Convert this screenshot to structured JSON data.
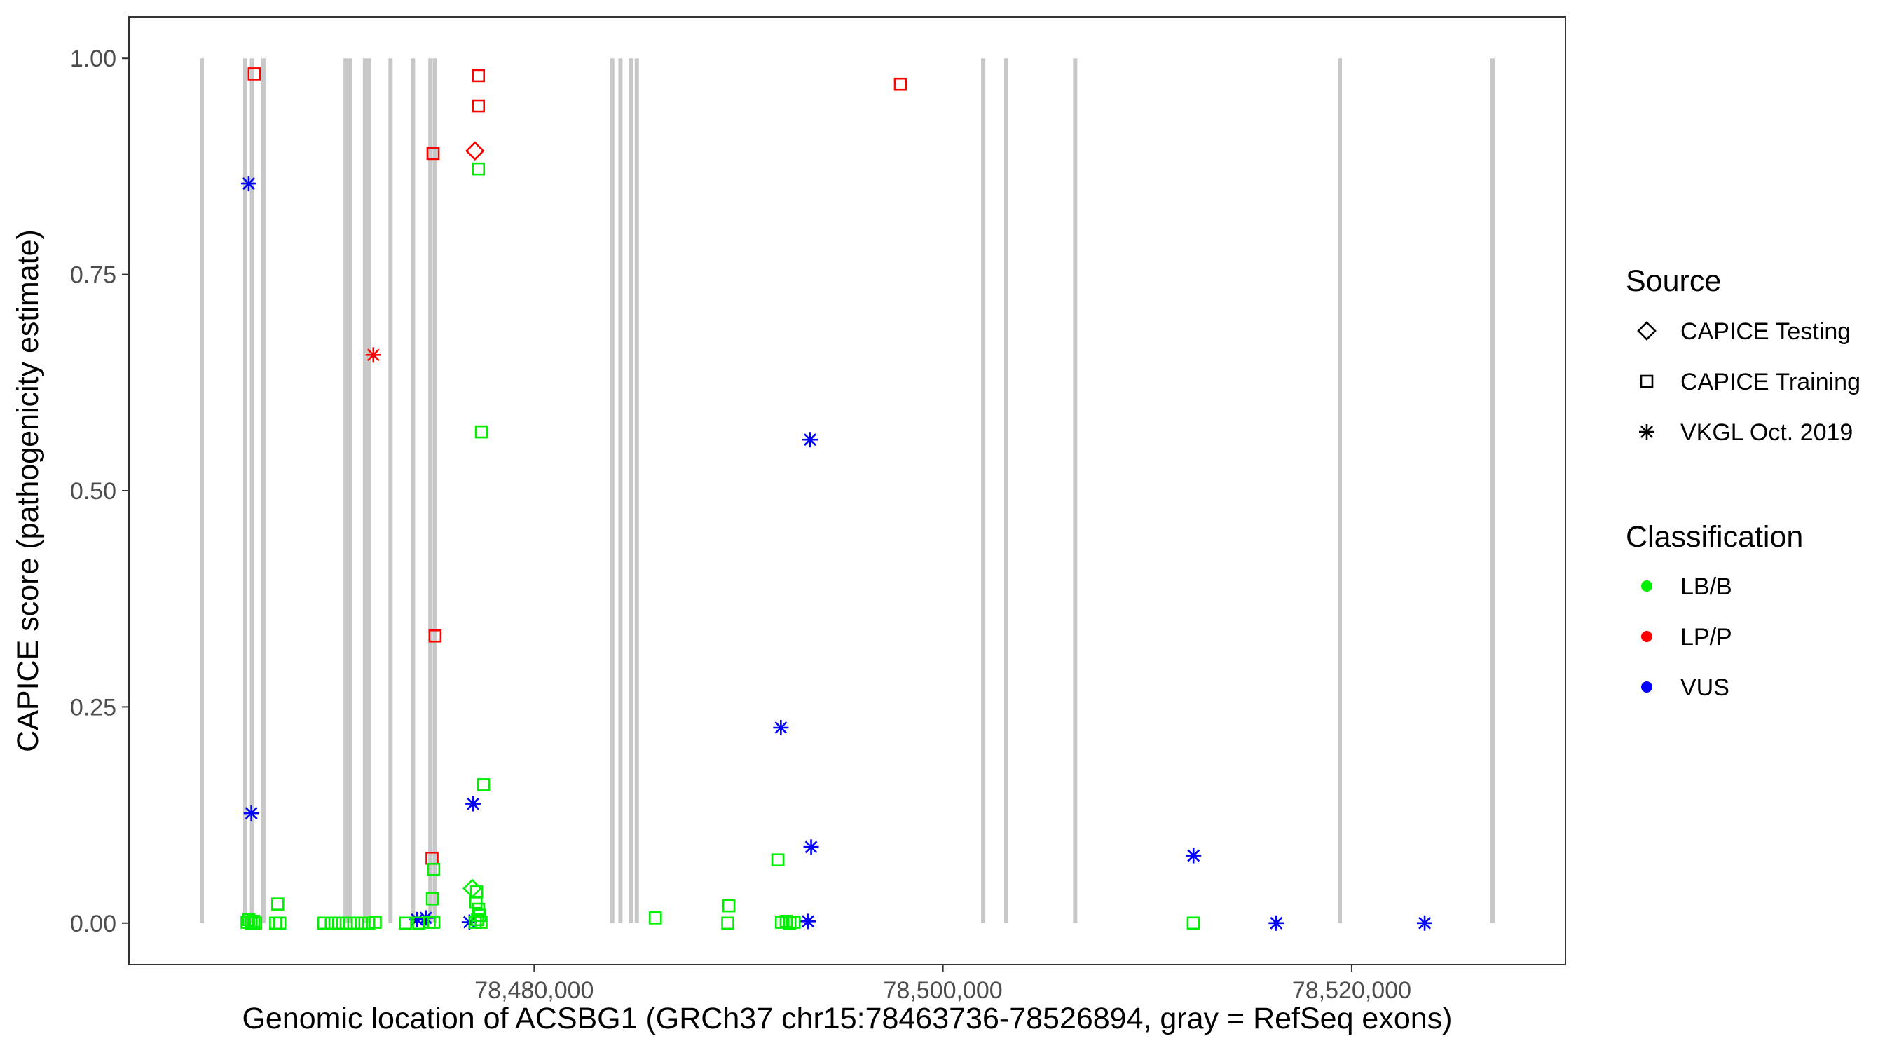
{
  "chart_data": {
    "type": "scatter",
    "title": "",
    "xlabel": "Genomic location of ACSBG1 (GRCh37 chr15:78463736-78526894, gray = RefSeq exons)",
    "ylabel": "CAPICE score (pathogenicity estimate)",
    "xlim": [
      78460170,
      78530460
    ],
    "ylim": [
      -0.048,
      1.048
    ],
    "x_ticks": [
      78480000,
      78500000,
      78520000
    ],
    "x_tick_labels": [
      "78,480,000",
      "78,500,000",
      "78,520,000"
    ],
    "y_ticks": [
      0,
      0.25,
      0.5,
      0.75,
      1
    ],
    "y_tick_labels": [
      "0.00",
      "0.25",
      "0.50",
      "0.75",
      "1.00"
    ],
    "grid": false,
    "legend_placement": "right",
    "exons": [
      78463736,
      78465860,
      78466190,
      78466750,
      78470770,
      78470990,
      78471720,
      78471920,
      78472970,
      78474070,
      78474920,
      78475140,
      78483820,
      78484220,
      78484720,
      78485020,
      78501970,
      78503100,
      78506470,
      78519420,
      78526894
    ],
    "legend": {
      "source_title": "Source",
      "source_items": [
        {
          "label": "CAPICE Testing",
          "shape": "diamond"
        },
        {
          "label": "CAPICE Training",
          "shape": "square"
        },
        {
          "label": "VKGL Oct. 2019",
          "shape": "asterisk"
        }
      ],
      "classification_title": "Classification",
      "classification_items": [
        {
          "label": "LB/B",
          "color": "#00ee00"
        },
        {
          "label": "LP/P",
          "color": "#ff0000"
        },
        {
          "label": "VUS",
          "color": "#0000ff"
        }
      ]
    },
    "series": [
      {
        "name": "CAPICE Training",
        "classification": "LP/P",
        "shape": "square",
        "color": "#ff0000",
        "points": [
          [
            78466300,
            0.982
          ],
          [
            78477270,
            0.98
          ],
          [
            78477270,
            0.945
          ],
          [
            78475050,
            0.89
          ],
          [
            78497920,
            0.97
          ],
          [
            78475150,
            0.332
          ],
          [
            78475000,
            0.075
          ]
        ]
      },
      {
        "name": "CAPICE Testing",
        "classification": "LP/P",
        "shape": "diamond",
        "color": "#ff0000",
        "points": [
          [
            78477100,
            0.893
          ]
        ]
      },
      {
        "name": "VKGL Oct. 2019",
        "classification": "LP/P",
        "shape": "asterisk",
        "color": "#ff0000",
        "points": [
          [
            78472130,
            0.657
          ]
        ]
      },
      {
        "name": "VKGL Oct. 2019",
        "classification": "VUS",
        "shape": "asterisk",
        "color": "#0000ff",
        "points": [
          [
            78466030,
            0.855
          ],
          [
            78466160,
            0.127
          ],
          [
            78477010,
            0.138
          ],
          [
            78492070,
            0.226
          ],
          [
            78493500,
            0.559
          ],
          [
            78493550,
            0.088
          ],
          [
            78493400,
            0.002
          ],
          [
            78512260,
            0.078
          ],
          [
            78516310,
            0.0
          ],
          [
            78523570,
            0.0
          ],
          [
            78474270,
            0.004
          ],
          [
            78474700,
            0.006
          ],
          [
            78476830,
            0.001
          ]
        ]
      },
      {
        "name": "CAPICE Training",
        "classification": "LB/B",
        "shape": "square",
        "color": "#00ee00",
        "points": [
          [
            78477270,
            0.872
          ],
          [
            78477420,
            0.568
          ],
          [
            78477520,
            0.16
          ],
          [
            78475080,
            0.062
          ],
          [
            78475020,
            0.028
          ],
          [
            78477180,
            0.036
          ],
          [
            78477150,
            0.024
          ],
          [
            78477280,
            0.016
          ],
          [
            78477340,
            0.009
          ],
          [
            78477230,
            0.004
          ],
          [
            78477110,
            0.001
          ],
          [
            78477400,
            0.001
          ],
          [
            78467450,
            0.022
          ],
          [
            78467350,
            0.0
          ],
          [
            78467550,
            0.0
          ],
          [
            78485930,
            0.006
          ],
          [
            78489520,
            0.02
          ],
          [
            78489470,
            0.0
          ],
          [
            78491920,
            0.073
          ],
          [
            78492100,
            0.001
          ],
          [
            78492330,
            0.002
          ],
          [
            78492510,
            0.0
          ],
          [
            78492720,
            0.001
          ],
          [
            78512250,
            0.0
          ],
          [
            78465950,
            0.001
          ],
          [
            78466040,
            0.004
          ],
          [
            78466150,
            0.0
          ],
          [
            78466270,
            0.002
          ],
          [
            78466370,
            0.0
          ],
          [
            78469700,
            0.0
          ],
          [
            78470070,
            0.0
          ],
          [
            78470430,
            0.0
          ],
          [
            78470800,
            0.0
          ],
          [
            78471170,
            0.0
          ],
          [
            78471540,
            0.0
          ],
          [
            78471900,
            0.0
          ],
          [
            78472220,
            0.001
          ],
          [
            78473700,
            0.0
          ],
          [
            78474350,
            0.0
          ],
          [
            78474860,
            0.001
          ],
          [
            78475090,
            0.001
          ]
        ]
      },
      {
        "name": "CAPICE Testing",
        "classification": "LB/B",
        "shape": "diamond",
        "color": "#00ee00",
        "points": [
          [
            78476970,
            0.04
          ]
        ]
      }
    ]
  }
}
